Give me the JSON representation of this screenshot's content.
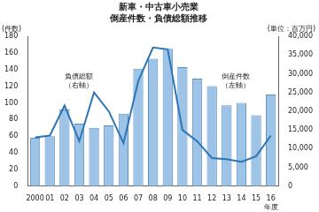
{
  "chart_data": {
    "type": "bar",
    "title": "新車・中古車小売業",
    "subtitle": "倒産件数・負債総額推移",
    "ylabel": "(件数)",
    "y2label": "(単位：百万円)",
    "xlabel": "年度",
    "categories": [
      "2000",
      "01",
      "02",
      "03",
      "04",
      "05",
      "06",
      "07",
      "08",
      "09",
      "10",
      "11",
      "12",
      "13",
      "14",
      "15",
      "16"
    ],
    "series": [
      {
        "name": "倒産件数",
        "type": "bar",
        "color": "#9dc3e6",
        "values": [
          58,
          60,
          92,
          75,
          70,
          73,
          87,
          141,
          153,
          165,
          143,
          129,
          120,
          97,
          100,
          85,
          110
        ]
      },
      {
        "name": "負債総額",
        "type": "line",
        "axis": "y2",
        "color": "#2e75b6",
        "marker": "none",
        "line_style": "solid",
        "values": [
          13000,
          13500,
          21500,
          12000,
          25000,
          20000,
          11500,
          28000,
          37000,
          36500,
          15000,
          12000,
          7500,
          7200,
          6500,
          8000,
          13500
        ]
      }
    ],
    "annotations": [
      {
        "text": [
          "負債総額",
          "（右軸）"
        ]
      },
      {
        "text": [
          "倒産件数",
          "（左軸）"
        ]
      }
    ],
    "ylim": [
      0,
      180
    ],
    "yticks": [
      0,
      20,
      40,
      60,
      80,
      100,
      120,
      140,
      160,
      180
    ],
    "y2lim": [
      0,
      40000
    ],
    "y2ticks": [
      0,
      {
        "value": 5000,
        "label": "5,000"
      },
      {
        "value": 10000,
        "label": "10,000"
      },
      {
        "value": 15000,
        "label": "15,000"
      },
      {
        "value": 20000,
        "label": "20,000"
      },
      {
        "value": 25000,
        "label": "25,000"
      },
      {
        "value": 30000,
        "label": "30,000"
      },
      {
        "value": 35000,
        "label": "35,000"
      },
      {
        "value": 40000,
        "label": "40,000"
      }
    ],
    "grid": false,
    "legend": false
  }
}
